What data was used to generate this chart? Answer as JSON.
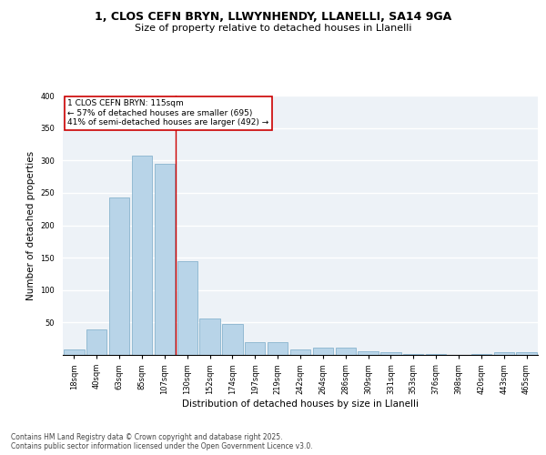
{
  "title_line1": "1, CLOS CEFN BRYN, LLWYNHENDY, LLANELLI, SA14 9GA",
  "title_line2": "Size of property relative to detached houses in Llanelli",
  "xlabel": "Distribution of detached houses by size in Llanelli",
  "ylabel": "Number of detached properties",
  "categories": [
    "18sqm",
    "40sqm",
    "63sqm",
    "85sqm",
    "107sqm",
    "130sqm",
    "152sqm",
    "174sqm",
    "197sqm",
    "219sqm",
    "242sqm",
    "264sqm",
    "286sqm",
    "309sqm",
    "331sqm",
    "353sqm",
    "376sqm",
    "398sqm",
    "420sqm",
    "443sqm",
    "465sqm"
  ],
  "values": [
    8,
    39,
    243,
    307,
    295,
    145,
    56,
    48,
    19,
    20,
    9,
    11,
    11,
    5,
    4,
    2,
    2,
    0,
    2,
    4,
    4
  ],
  "bar_color": "#b8d4e8",
  "bar_edge_color": "#7aaac8",
  "vline_color": "#cc0000",
  "vline_x_index": 4,
  "annotation_text": "1 CLOS CEFN BRYN: 115sqm\n← 57% of detached houses are smaller (695)\n41% of semi-detached houses are larger (492) →",
  "annotation_box_color": "#ffffff",
  "annotation_box_edge": "#cc0000",
  "ylim": [
    0,
    400
  ],
  "yticks": [
    0,
    50,
    100,
    150,
    200,
    250,
    300,
    350,
    400
  ],
  "background_color": "#edf2f7",
  "footer_text": "Contains HM Land Registry data © Crown copyright and database right 2025.\nContains public sector information licensed under the Open Government Licence v3.0.",
  "title_fontsize": 9,
  "subtitle_fontsize": 8,
  "tick_fontsize": 6,
  "label_fontsize": 7.5,
  "annotation_fontsize": 6.5,
  "footer_fontsize": 5.5
}
